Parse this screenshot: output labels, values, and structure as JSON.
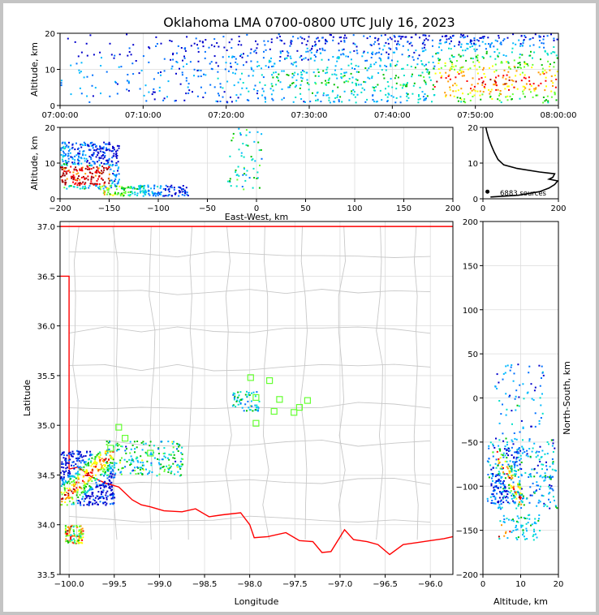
{
  "figure": {
    "title": "Oklahoma LMA 0700-0800 UTC July 16, 2023",
    "frame_bg": "#c4c4c4",
    "county_line_color": "#c8c8c8",
    "border_color": "#ff0000",
    "station_color": "#66ff33",
    "source_palette": [
      "#0000cc",
      "#0070ff",
      "#00b8ff",
      "#00e0c8",
      "#00c000",
      "#66ff33",
      "#ffff00",
      "#ff9900",
      "#ff0000",
      "#a00000"
    ]
  },
  "chart_data": [
    {
      "id": "time_altitude",
      "type": "scatter",
      "xlabel": "",
      "ylabel": "Altitude, km",
      "xlim": [
        "07:00:00",
        "08:00:00"
      ],
      "ylim": [
        0,
        20
      ],
      "xticks": [
        "07:00:00",
        "07:10:00",
        "07:20:00",
        "07:30:00",
        "07:40:00",
        "07:50:00",
        "08:00:00"
      ],
      "yticks": [
        "0",
        "10",
        "20"
      ],
      "grid": true,
      "density_profile": [
        {
          "t_min": 0,
          "level": 0.5
        },
        {
          "t_min": 10,
          "level": 0.3
        },
        {
          "t_min": 15,
          "level": 0.4
        },
        {
          "t_min": 20,
          "level": 0.5
        },
        {
          "t_min": 25,
          "level": 0.6
        },
        {
          "t_min": 30,
          "level": 0.9
        },
        {
          "t_min": 35,
          "level": 0.85
        },
        {
          "t_min": 40,
          "level": 0.8
        },
        {
          "t_min": 45,
          "level": 0.95
        },
        {
          "t_min": 50,
          "level": 1.0
        },
        {
          "t_min": 55,
          "level": 0.9
        },
        {
          "t_min": 60,
          "level": 0.9
        }
      ],
      "altitude_band_km": [
        1,
        20
      ]
    },
    {
      "id": "ew_altitude",
      "type": "scatter",
      "xlabel": "East-West, km",
      "ylabel": "Altitude, km",
      "xlim": [
        -200,
        200
      ],
      "ylim": [
        0,
        20
      ],
      "xticks": [
        "−200",
        "−150",
        "−100",
        "−50",
        "0",
        "50",
        "100",
        "150",
        "200"
      ],
      "yticks": [
        "0",
        "10",
        "20"
      ],
      "grid": true,
      "clusters": [
        {
          "x": [
            -200,
            -140
          ],
          "z": [
            3,
            16
          ],
          "density": "high",
          "core_x": [
            -200,
            -150
          ],
          "core_z": [
            4,
            9
          ]
        },
        {
          "x": [
            -160,
            -70
          ],
          "z": [
            1,
            4
          ],
          "density": "medium"
        },
        {
          "x": [
            -30,
            5
          ],
          "z": [
            0,
            20
          ],
          "density": "low"
        }
      ]
    },
    {
      "id": "altitude_histogram",
      "type": "line",
      "xlim": [
        0,
        200
      ],
      "ylim": [
        0,
        20
      ],
      "xticks": [
        "0",
        "200"
      ],
      "yticks": [
        "0",
        "10",
        "20"
      ],
      "annotation": "6883 sources",
      "profile": [
        {
          "alt": 0.5,
          "count": 20
        },
        {
          "alt": 1,
          "count": 95
        },
        {
          "alt": 2,
          "count": 150
        },
        {
          "alt": 3,
          "count": 175
        },
        {
          "alt": 4,
          "count": 190
        },
        {
          "alt": 5,
          "count": 198
        },
        {
          "alt": 5.5,
          "count": 175
        },
        {
          "alt": 6,
          "count": 185
        },
        {
          "alt": 7,
          "count": 190
        },
        {
          "alt": 7.5,
          "count": 150
        },
        {
          "alt": 8.5,
          "count": 90
        },
        {
          "alt": 9.5,
          "count": 55
        },
        {
          "alt": 11,
          "count": 40
        },
        {
          "alt": 13,
          "count": 30
        },
        {
          "alt": 15,
          "count": 22
        },
        {
          "alt": 17,
          "count": 15
        },
        {
          "alt": 19,
          "count": 10
        },
        {
          "alt": 20,
          "count": 8
        }
      ]
    },
    {
      "id": "plan_view",
      "type": "scatter",
      "xlabel": "Longitude",
      "ylabel": "Latitude",
      "xlim": [
        -100.1,
        -95.75
      ],
      "ylim": [
        33.5,
        37.05
      ],
      "xticks": [
        "−100.0",
        "−99.5",
        "−99.0",
        "−98.5",
        "−98.0",
        "−97.5",
        "−97.0",
        "−96.5",
        "−96.0"
      ],
      "yticks": [
        "33.5",
        "34.0",
        "34.5",
        "35.0",
        "35.5",
        "36.0",
        "36.5",
        "37.0"
      ],
      "grid": true,
      "stations": [
        {
          "lon": -97.99,
          "lat": 35.48
        },
        {
          "lon": -97.78,
          "lat": 35.45
        },
        {
          "lon": -97.93,
          "lat": 35.28
        },
        {
          "lon": -97.67,
          "lat": 35.26
        },
        {
          "lon": -97.36,
          "lat": 35.25
        },
        {
          "lon": -97.45,
          "lat": 35.18
        },
        {
          "lon": -97.73,
          "lat": 35.14
        },
        {
          "lon": -97.51,
          "lat": 35.13
        },
        {
          "lon": -97.93,
          "lat": 35.02
        },
        {
          "lon": -99.45,
          "lat": 34.98
        },
        {
          "lon": -99.38,
          "lat": 34.87
        },
        {
          "lon": -99.54,
          "lat": 34.77
        },
        {
          "lon": -99.1,
          "lat": 34.72
        }
      ],
      "clusters": [
        {
          "lon": [
            -100.1,
            -99.5
          ],
          "lat": [
            34.2,
            34.75
          ],
          "density": "high"
        },
        {
          "lon": [
            -99.6,
            -98.75
          ],
          "lat": [
            34.5,
            34.85
          ],
          "density": "medium"
        },
        {
          "lon": [
            -100.05,
            -99.85
          ],
          "lat": [
            33.82,
            34.0
          ],
          "density": "medium"
        },
        {
          "lon": [
            -98.2,
            -97.9
          ],
          "lat": [
            35.15,
            35.35
          ],
          "density": "low"
        }
      ]
    },
    {
      "id": "altitude_ns",
      "type": "scatter",
      "xlabel": "Altitude, km",
      "ylabel": "North-South, km",
      "xlim": [
        0,
        20
      ],
      "ylim": [
        -200,
        200
      ],
      "xticks": [
        "0",
        "10",
        "20"
      ],
      "yticks": [
        "−200",
        "−150",
        "−100",
        "−50",
        "0",
        "50",
        "100",
        "150",
        "200"
      ],
      "grid": true,
      "clusters": [
        {
          "z": [
            1,
            20
          ],
          "y": [
            -125,
            -45
          ],
          "density": "medium"
        },
        {
          "z": [
            2,
            10
          ],
          "y": [
            -120,
            -55
          ],
          "density": "high"
        },
        {
          "z": [
            3,
            16
          ],
          "y": [
            -40,
            40
          ],
          "density": "low"
        },
        {
          "z": [
            4,
            15
          ],
          "y": [
            -160,
            -130
          ],
          "density": "medium"
        }
      ]
    }
  ]
}
